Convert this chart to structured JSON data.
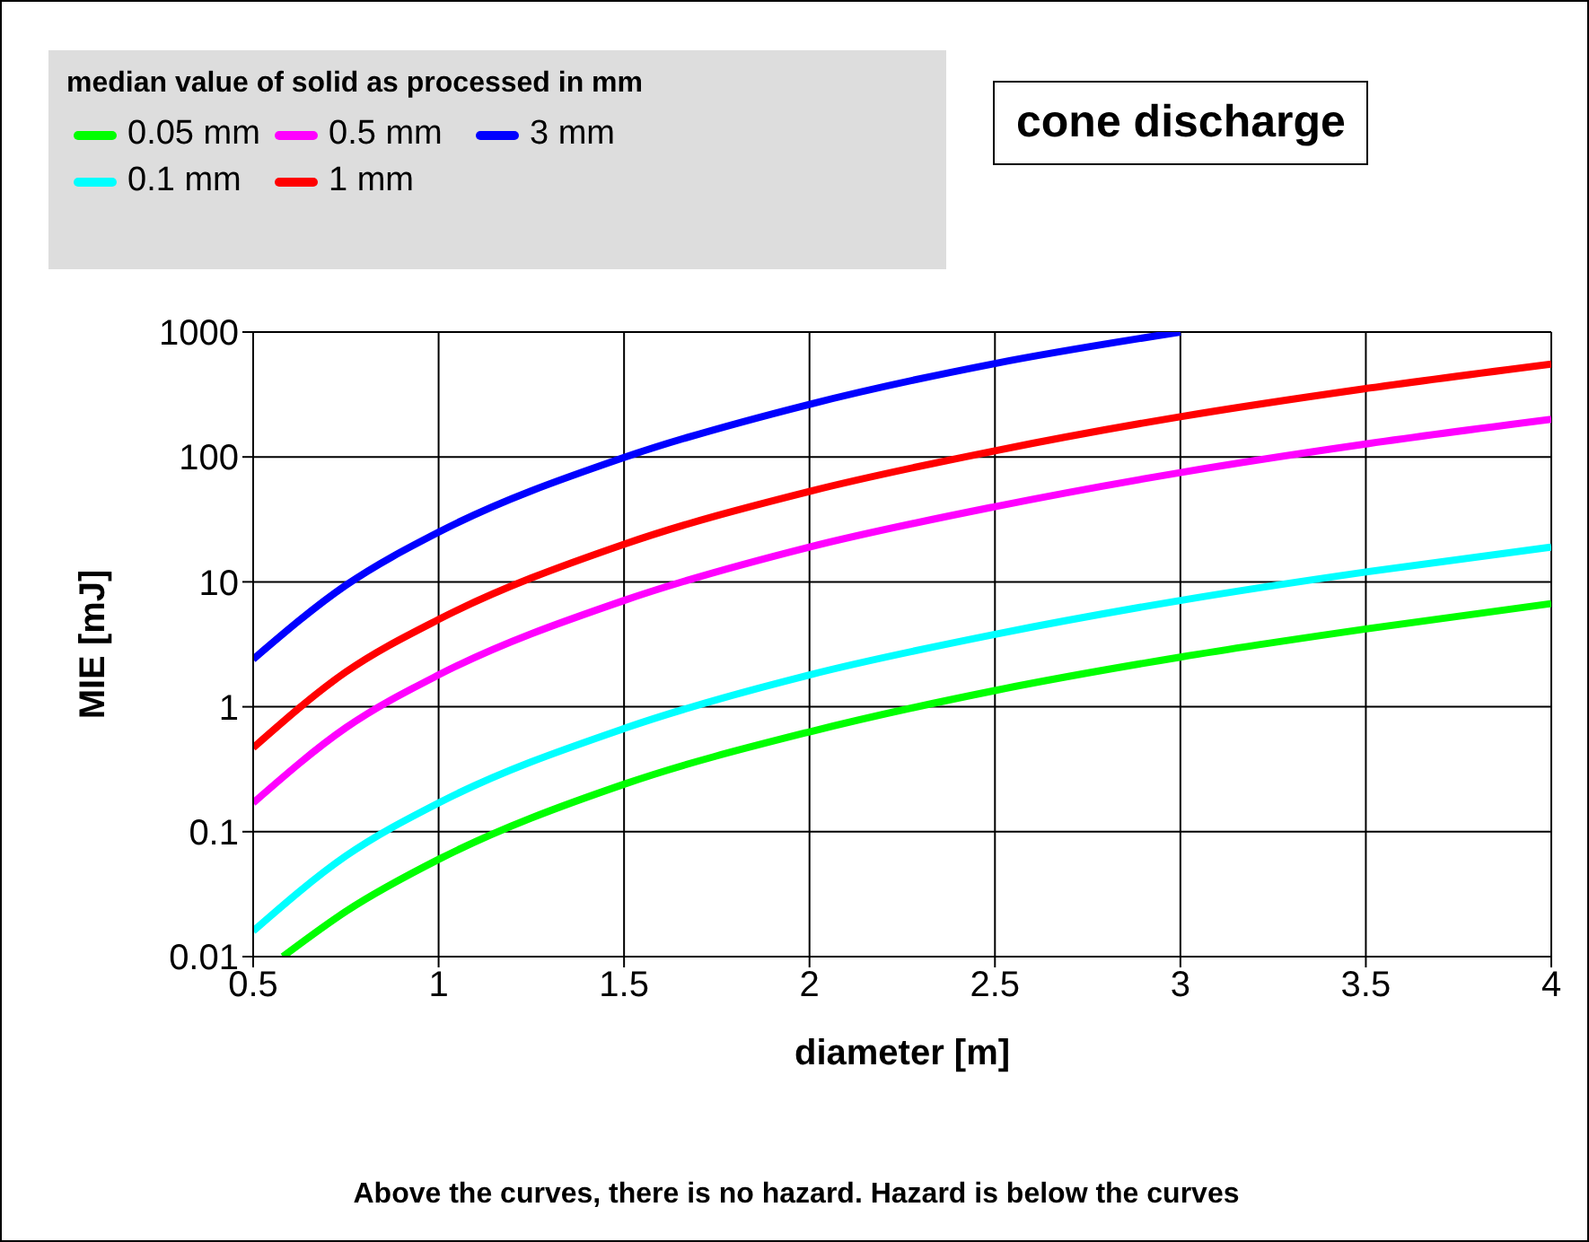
{
  "chart_data": {
    "type": "line",
    "title": "cone discharge",
    "legend_title": "median value of solid as processed in mm",
    "xlabel": "diameter [m]",
    "ylabel": "MIE [mJ]",
    "annotations": [
      "Above the curves, there is no hazard. Hazard is below the curves"
    ],
    "series": [
      {
        "name": "0.05 mm",
        "color": "#00ff00",
        "x": [
          0.58,
          0.75,
          1,
          1.5,
          2,
          2.5,
          3,
          3.5,
          4
        ],
        "values": [
          0.01,
          0.023,
          0.06,
          0.24,
          0.63,
          1.35,
          2.5,
          4.2,
          6.7
        ]
      },
      {
        "name": "0.1 mm",
        "color": "#00ffff",
        "x": [
          0.5,
          0.75,
          1,
          1.5,
          2,
          2.5,
          3,
          3.5,
          4
        ],
        "values": [
          0.016,
          0.064,
          0.17,
          0.67,
          1.8,
          3.8,
          7.1,
          12,
          19
        ]
      },
      {
        "name": "0.5 mm",
        "color": "#ff00ff",
        "x": [
          0.5,
          0.75,
          1,
          1.5,
          2,
          2.5,
          3,
          3.5,
          4
        ],
        "values": [
          0.17,
          0.68,
          1.8,
          7.1,
          19,
          40,
          75,
          127,
          200
        ]
      },
      {
        "name": "1 mm",
        "color": "#ff0000",
        "x": [
          0.5,
          0.75,
          1,
          1.5,
          2,
          2.5,
          3,
          3.5,
          4
        ],
        "values": [
          0.47,
          1.9,
          5,
          20,
          53,
          112,
          210,
          353,
          555
        ]
      },
      {
        "name": "3 mm",
        "color": "#0000ff",
        "x": [
          0.5,
          0.75,
          1,
          1.5,
          2,
          2.5,
          3
        ],
        "values": [
          2.4,
          9.4,
          25,
          99,
          264,
          560,
          1000
        ]
      }
    ],
    "xlim": [
      0.5,
      4
    ],
    "xticks": [
      0.5,
      1,
      1.5,
      2,
      2.5,
      3,
      3.5,
      4
    ],
    "ylim": [
      0.01,
      1000
    ],
    "yticks": [
      0.01,
      0.1,
      1,
      10,
      100,
      1000
    ],
    "log": "y",
    "grid": true,
    "legend": "top left",
    "marker": "none",
    "line_style": "solid"
  }
}
